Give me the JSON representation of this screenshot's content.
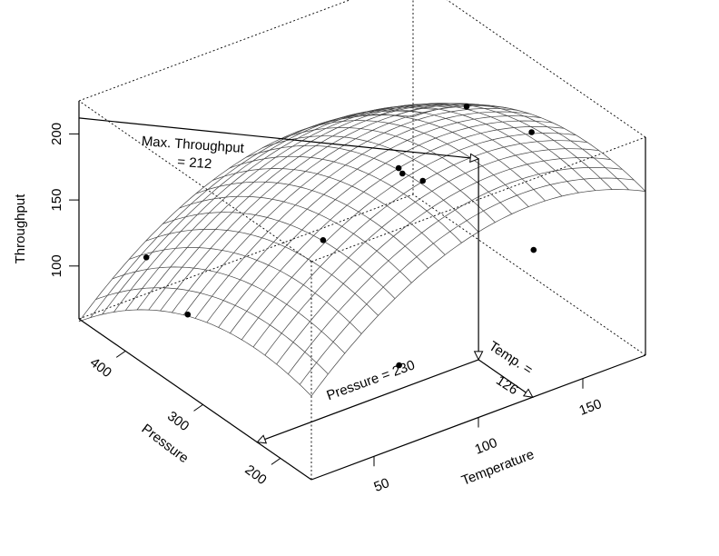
{
  "chart_data": {
    "type": "surface3d",
    "title": "",
    "x_axis": {
      "label": "Temperature",
      "ticks": [
        50,
        100,
        150
      ],
      "range": [
        20,
        180
      ]
    },
    "y_axis": {
      "label": "Pressure",
      "ticks": [
        200,
        300,
        400
      ],
      "range": [
        160,
        460
      ]
    },
    "z_axis": {
      "label": "Throughput",
      "ticks": [
        100,
        150,
        200
      ],
      "range": [
        60,
        225
      ]
    },
    "surface": {
      "form": "quadratic",
      "optimum": {
        "temperature": 126,
        "pressure": 230,
        "throughput": 212
      },
      "a_temperature": 0.0073,
      "a_pressure": 0.00136,
      "grid_x_cells": 20,
      "grid_y_cells": 20
    },
    "points": [
      {
        "temperature": 30,
        "pressure": 400,
        "throughput": 125
      },
      {
        "temperature": 35,
        "pressure": 360,
        "throughput": 95
      },
      {
        "temperature": 72,
        "pressure": 285,
        "throughput": 160
      },
      {
        "temperature": 75,
        "pressure": 195,
        "throughput": 100
      },
      {
        "temperature": 110,
        "pressure": 290,
        "throughput": 190
      },
      {
        "temperature": 110,
        "pressure": 285,
        "throughput": 188
      },
      {
        "temperature": 116,
        "pressure": 275,
        "throughput": 183
      },
      {
        "temperature": 145,
        "pressure": 210,
        "throughput": 140
      },
      {
        "temperature": 150,
        "pressure": 310,
        "throughput": 205
      },
      {
        "temperature": 170,
        "pressure": 280,
        "throughput": 186
      }
    ],
    "annotations": {
      "max_label_line1": "Max. Throughput",
      "max_label_line2": "= 212",
      "pressure_label": "Pressure = 230",
      "temp_label_line1": "Temp. =",
      "temp_label_line2": "126"
    }
  }
}
